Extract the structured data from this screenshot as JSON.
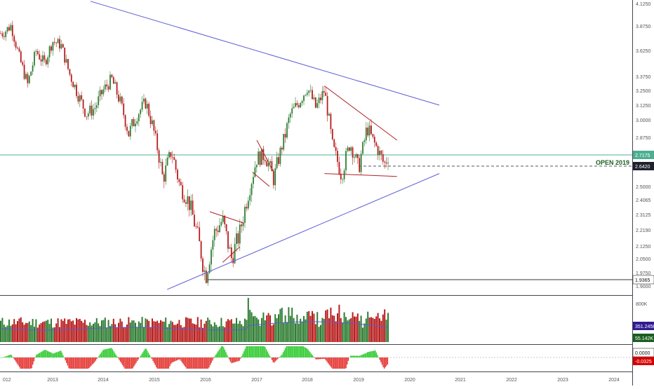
{
  "chart_data": {
    "type": "candlestick",
    "price_axis": {
      "ticks": [
        "4.1250",
        "3.8750",
        "3.6250",
        "3.3750",
        "3.2500",
        "3.1250",
        "3.0000",
        "2.8750",
        "2.7175",
        "2.6420",
        "2.5000",
        "2.4065",
        "2.3125",
        "2.2190",
        "2.1250",
        "2.0500",
        "1.9750",
        "1.9365",
        "1.9000"
      ],
      "range": [
        1.88,
        4.16
      ],
      "last_price": "2.7175",
      "open_2019_price": "2.6420",
      "low_marker": "1.9365"
    },
    "annotations": {
      "open_label": "OPEN 2019"
    },
    "x_axis_labels": [
      "012",
      "2013",
      "2014",
      "2015",
      "2016",
      "2017",
      "2018",
      "2019",
      "2020",
      "2021",
      "2022",
      "2023",
      "2024"
    ],
    "volume_pane": {
      "ticks": [
        "800K"
      ],
      "ma_value": "351.245K",
      "last_value": "55.142K"
    },
    "oscillator_pane": {
      "zero_label": "0.0000",
      "last_value": "-0.0325"
    },
    "price_path": [
      [
        "2012-01",
        3.8
      ],
      [
        "2012-03",
        3.88
      ],
      [
        "2012-05",
        3.55
      ],
      [
        "2012-07",
        3.3
      ],
      [
        "2012-09",
        3.62
      ],
      [
        "2012-11",
        3.5
      ],
      [
        "2013-01",
        3.72
      ],
      [
        "2013-03",
        3.68
      ],
      [
        "2013-05",
        3.4
      ],
      [
        "2013-07",
        3.22
      ],
      [
        "2013-09",
        3.05
      ],
      [
        "2013-11",
        3.1
      ],
      [
        "2014-01",
        3.25
      ],
      [
        "2014-03",
        3.35
      ],
      [
        "2014-05",
        3.15
      ],
      [
        "2014-07",
        2.9
      ],
      [
        "2014-09",
        3.05
      ],
      [
        "2014-11",
        3.15
      ],
      [
        "2015-01",
        2.9
      ],
      [
        "2015-03",
        2.55
      ],
      [
        "2015-05",
        2.75
      ],
      [
        "2015-07",
        2.5
      ],
      [
        "2015-09",
        2.4
      ],
      [
        "2015-11",
        2.2
      ],
      [
        "2016-01",
        1.95
      ],
      [
        "2016-03",
        2.2
      ],
      [
        "2016-05",
        2.28
      ],
      [
        "2016-07",
        2.05
      ],
      [
        "2016-09",
        2.2
      ],
      [
        "2016-11",
        2.45
      ],
      [
        "2017-01",
        2.7
      ],
      [
        "2017-03",
        2.72
      ],
      [
        "2017-05",
        2.55
      ],
      [
        "2017-07",
        2.8
      ],
      [
        "2017-09",
        3.05
      ],
      [
        "2017-11",
        3.15
      ],
      [
        "2018-01",
        3.28
      ],
      [
        "2018-03",
        3.1
      ],
      [
        "2018-05",
        3.25
      ],
      [
        "2018-07",
        2.78
      ],
      [
        "2018-09",
        2.58
      ],
      [
        "2018-11",
        2.82
      ],
      [
        "2019-01",
        2.62
      ],
      [
        "2019-03",
        2.95
      ],
      [
        "2019-05",
        2.8
      ],
      [
        "2019-07",
        2.65
      ],
      [
        "2019-08",
        2.72
      ]
    ],
    "colors": {
      "up": "#26a69a",
      "down": "#ef5350",
      "candle_up": "#2e7d32",
      "candle_down": "#b71c1c",
      "trendline_blue": "#5b5bd6",
      "trendline_red": "#b22222",
      "last_price_line": "#4caf8f",
      "open_label": "#1b5e20",
      "volume_ma_badge": "#311b92",
      "volume_last_badge": "#1b5e20",
      "osc_badge": "#d50000",
      "dark_badge": "#1e222d"
    }
  }
}
